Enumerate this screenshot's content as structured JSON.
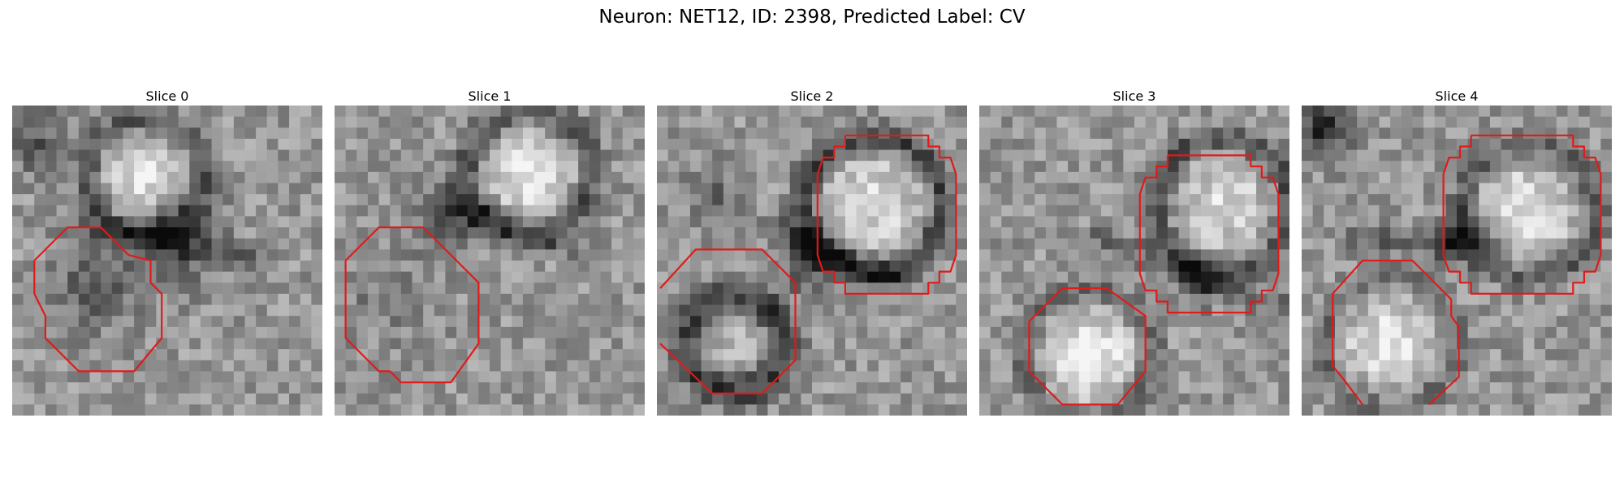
{
  "title": "Neuron: NET12, ID: 2398, Predicted Label: CV",
  "panels": [
    {
      "label": "Slice 0"
    },
    {
      "label": "Slice 1"
    },
    {
      "label": "Slice 2"
    },
    {
      "label": "Slice 3"
    },
    {
      "label": "Slice 4"
    }
  ],
  "colors": {
    "contour": "#e11a1a"
  }
}
